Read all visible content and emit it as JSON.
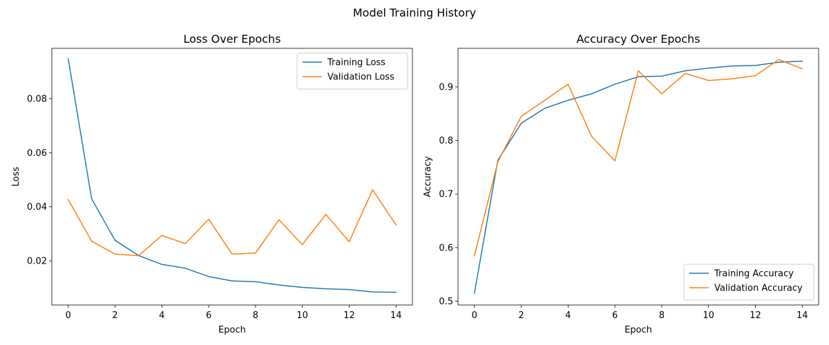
{
  "figure": {
    "suptitle": "Model Training History"
  },
  "chart_data": [
    {
      "type": "line",
      "title": "Loss Over Epochs",
      "xlabel": "Epoch",
      "ylabel": "Loss",
      "x": [
        0,
        1,
        2,
        3,
        4,
        5,
        6,
        7,
        8,
        9,
        10,
        11,
        12,
        13,
        14
      ],
      "xlim": [
        -0.7,
        14.7
      ],
      "ylim": [
        0.0037,
        0.0986
      ],
      "xticks": [
        0,
        2,
        4,
        6,
        8,
        10,
        12,
        14
      ],
      "xtick_labels": [
        "0",
        "2",
        "4",
        "6",
        "8",
        "10",
        "12",
        "14"
      ],
      "yticks": [
        0.02,
        0.04,
        0.06,
        0.08
      ],
      "ytick_labels": [
        "0.02",
        "0.04",
        "0.06",
        "0.08"
      ],
      "legend_position": "top-right",
      "grid": false,
      "series": [
        {
          "name": "Training Loss",
          "color": "#1f77b4",
          "values": [
            0.0947,
            0.043,
            0.0276,
            0.022,
            0.0187,
            0.0173,
            0.0142,
            0.0126,
            0.0123,
            0.0111,
            0.0102,
            0.0097,
            0.0094,
            0.0085,
            0.0084
          ]
        },
        {
          "name": "Validation Loss",
          "color": "#ff7f0e",
          "values": [
            0.0427,
            0.0273,
            0.0225,
            0.0219,
            0.0294,
            0.0264,
            0.0354,
            0.0225,
            0.0229,
            0.0352,
            0.026,
            0.0372,
            0.0271,
            0.0463,
            0.0333
          ]
        }
      ]
    },
    {
      "type": "line",
      "title": "Accuracy Over Epochs",
      "xlabel": "Epoch",
      "ylabel": "Accuracy",
      "x": [
        0,
        1,
        2,
        3,
        4,
        5,
        6,
        7,
        8,
        9,
        10,
        11,
        12,
        13,
        14
      ],
      "xlim": [
        -0.7,
        14.7
      ],
      "ylim": [
        0.493,
        0.972
      ],
      "xticks": [
        0,
        2,
        4,
        6,
        8,
        10,
        12,
        14
      ],
      "xtick_labels": [
        "0",
        "2",
        "4",
        "6",
        "8",
        "10",
        "12",
        "14"
      ],
      "yticks": [
        0.5,
        0.6,
        0.7,
        0.8,
        0.9
      ],
      "ytick_labels": [
        "0.5",
        "0.6",
        "0.7",
        "0.8",
        "0.9"
      ],
      "legend_position": "bottom-right",
      "grid": false,
      "series": [
        {
          "name": "Training Accuracy",
          "color": "#1f77b4",
          "values": [
            0.515,
            0.763,
            0.832,
            0.86,
            0.875,
            0.887,
            0.905,
            0.919,
            0.92,
            0.93,
            0.935,
            0.939,
            0.94,
            0.946,
            0.948
          ]
        },
        {
          "name": "Validation Accuracy",
          "color": "#ff7f0e",
          "values": [
            0.585,
            0.76,
            0.845,
            0.875,
            0.905,
            0.808,
            0.762,
            0.93,
            0.887,
            0.925,
            0.912,
            0.915,
            0.921,
            0.951,
            0.934
          ]
        }
      ]
    }
  ]
}
